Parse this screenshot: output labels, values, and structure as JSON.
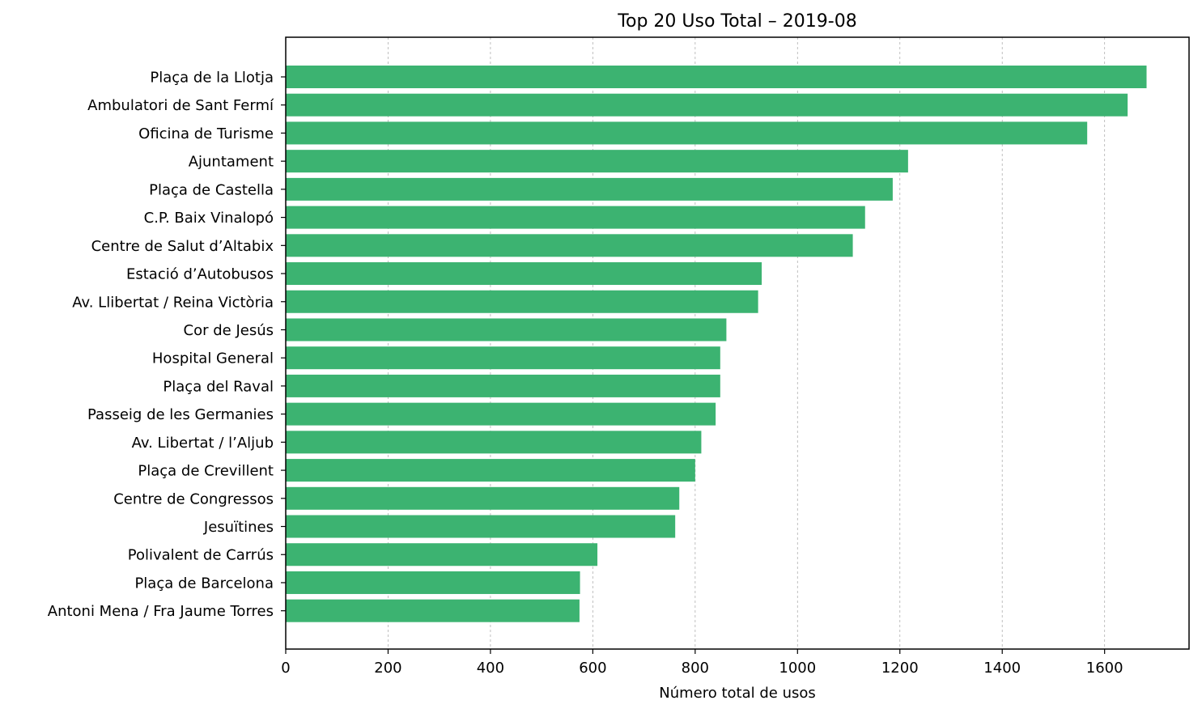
{
  "chart_data": {
    "type": "bar",
    "orientation": "horizontal",
    "title": "Top 20 Uso Total – 2019-08",
    "xlabel": "Número total de usos",
    "ylabel": "",
    "xlim": [
      0,
      1765
    ],
    "xticks": [
      "0",
      "200",
      "400",
      "600",
      "800",
      "1000",
      "1200",
      "1400",
      "1600"
    ],
    "grid": "x-dashed",
    "bar_color": "#3cb371",
    "categories": [
      "Plaça de la Llotja",
      "Ambulatori de Sant Fermí",
      "Oficina de Turisme",
      "Ajuntament",
      "Plaça de Castella",
      "C.P. Baix Vinalopó",
      "Centre de Salut d’Altabix",
      "Estació d’Autobusos",
      "Av. Llibertat / Reina Victòria",
      "Cor de Jesús",
      "Hospital General",
      "Plaça del Raval",
      "Passeig de les Germanies",
      "Av. Libertat / l’Aljub",
      "Plaça de Crevillent",
      "Centre de Congressos",
      "Jesuïtines",
      "Polivalent de Carrús",
      "Plaça de Barcelona",
      "Antoni Mena / Fra Jaume Torres"
    ],
    "values": [
      1682,
      1645,
      1566,
      1216,
      1186,
      1132,
      1108,
      930,
      923,
      861,
      849,
      849,
      840,
      812,
      800,
      769,
      761,
      609,
      575,
      574
    ]
  }
}
